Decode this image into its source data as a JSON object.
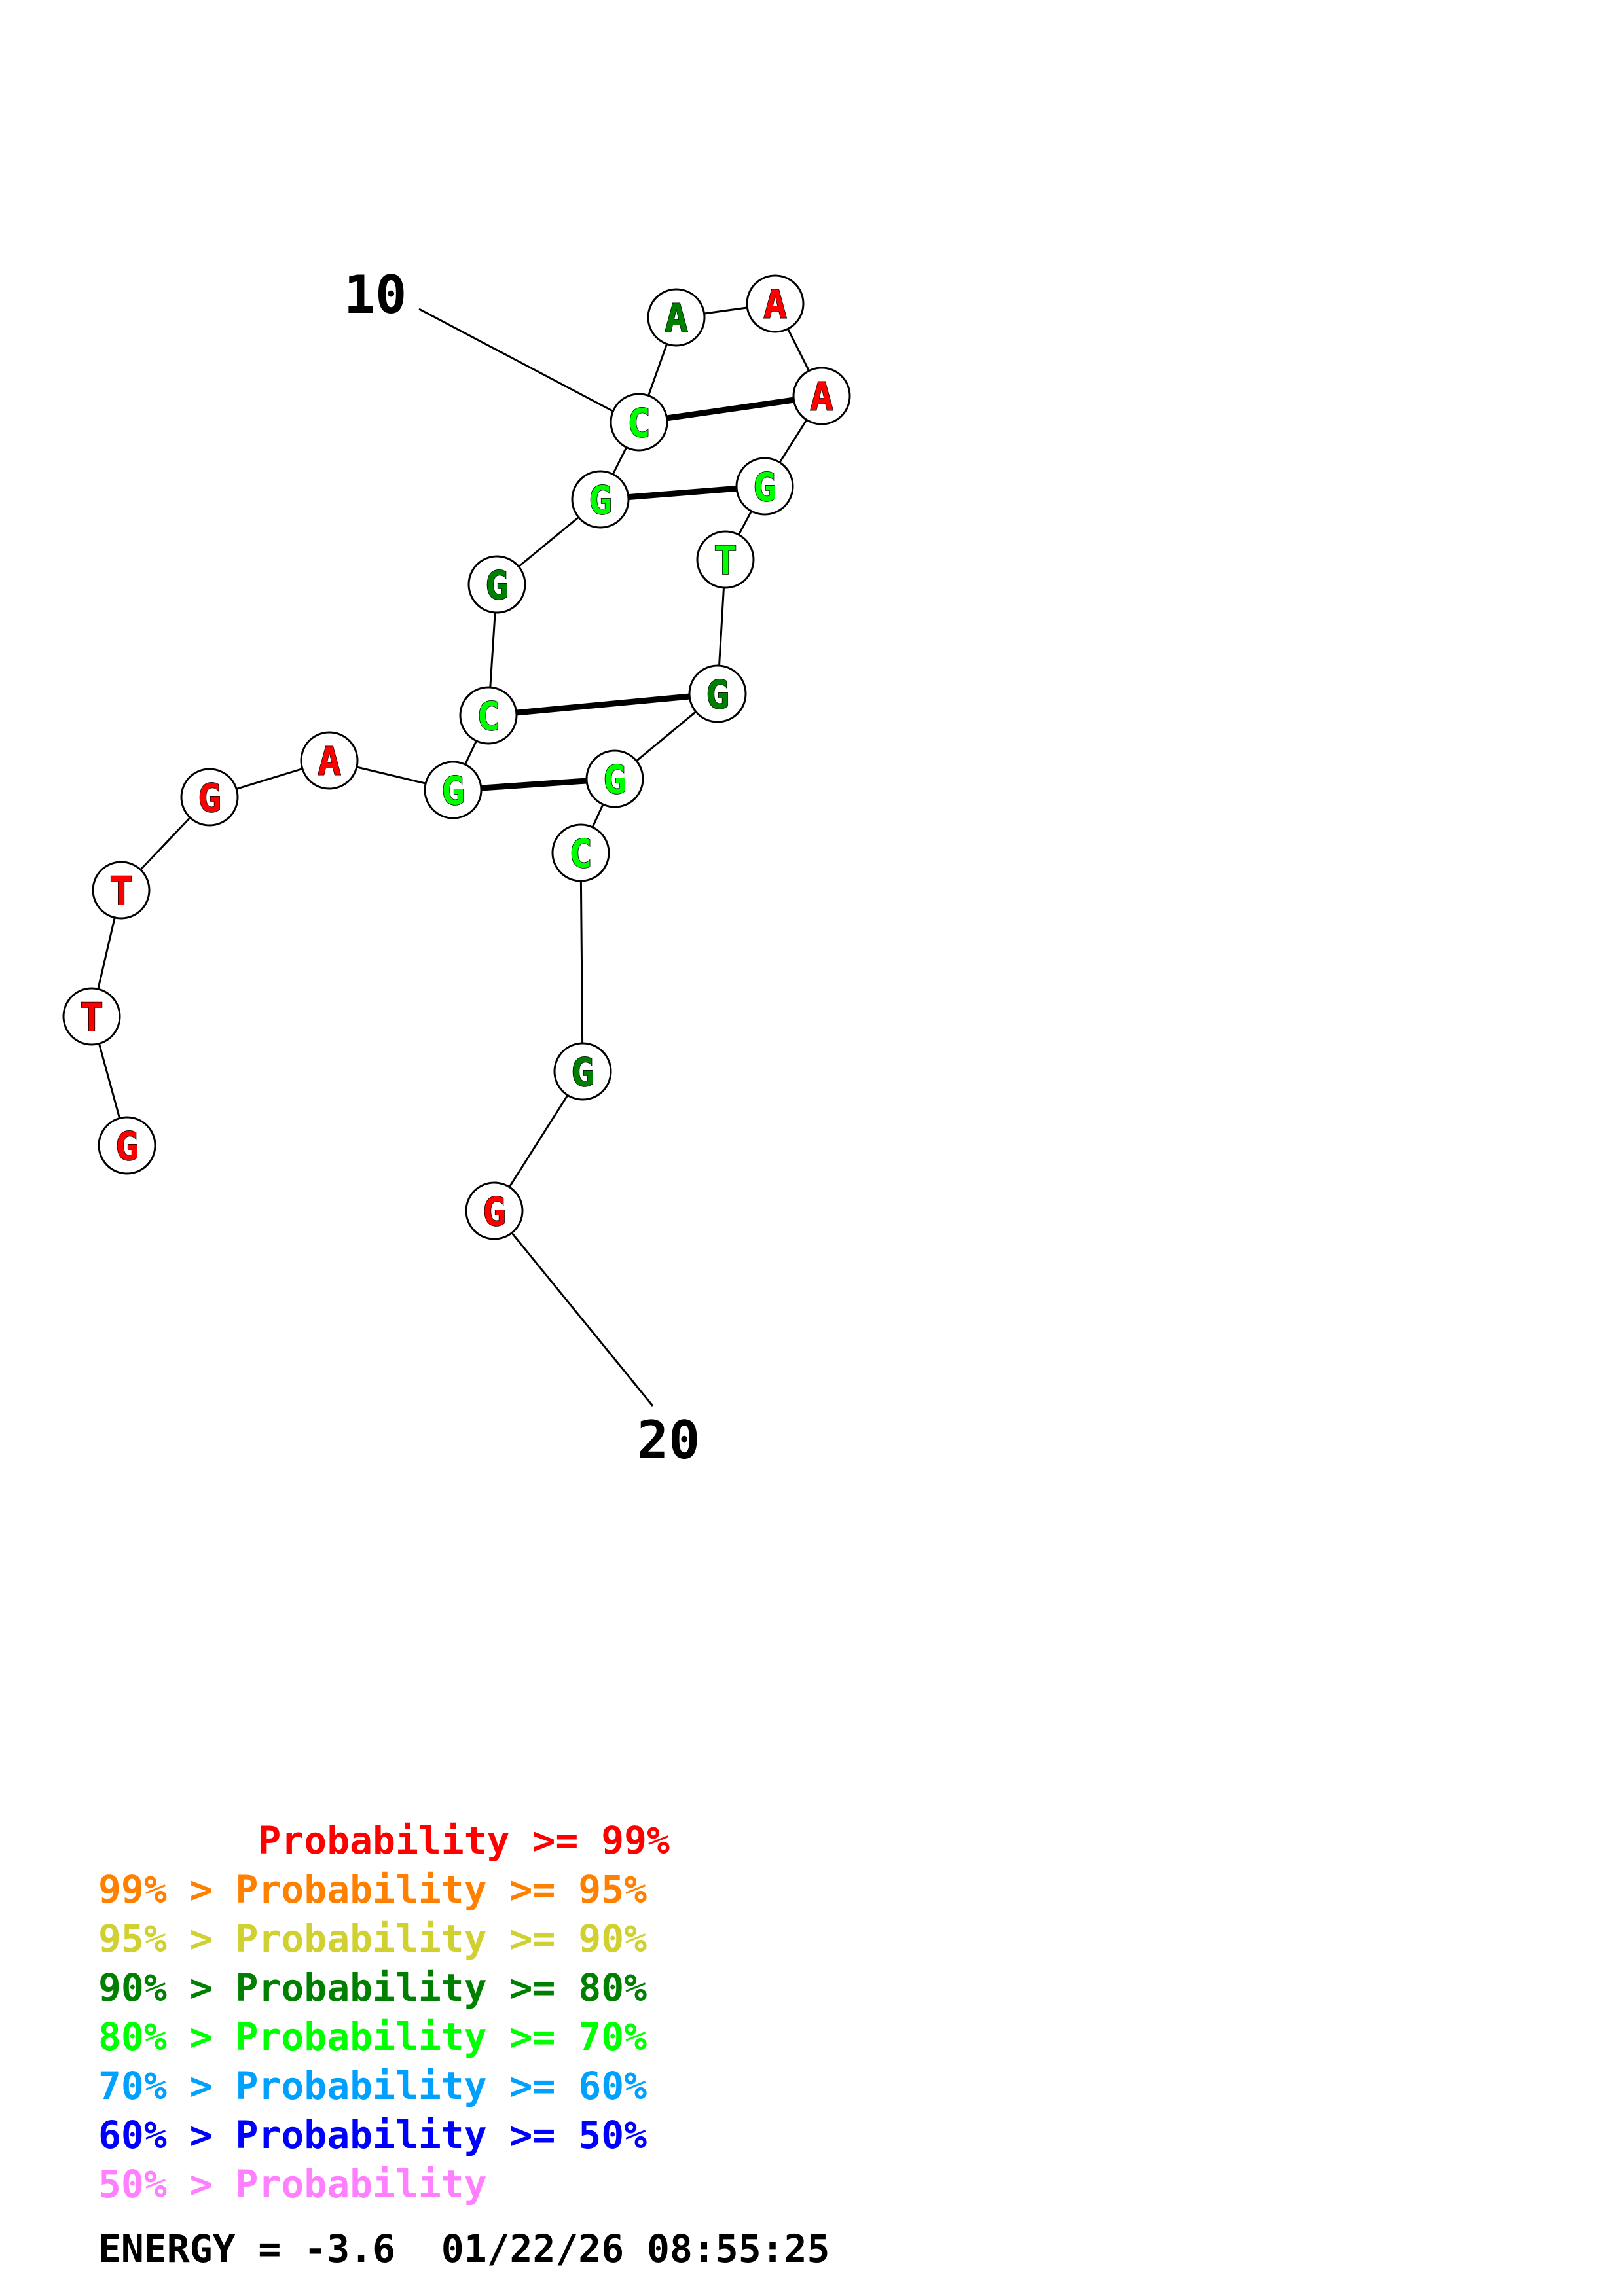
{
  "labels": {
    "start": "10",
    "end": "20"
  },
  "nucleotides": [
    {
      "base": "G",
      "color": "#ff0000"
    },
    {
      "base": "T",
      "color": "#ff0000"
    },
    {
      "base": "T",
      "color": "#ff0000"
    },
    {
      "base": "G",
      "color": "#ff0000"
    },
    {
      "base": "A",
      "color": "#ff0000"
    },
    {
      "base": "G",
      "color": "#00ff00"
    },
    {
      "base": "C",
      "color": "#00ff00"
    },
    {
      "base": "G",
      "color": "#008000"
    },
    {
      "base": "G",
      "color": "#00ff00"
    },
    {
      "base": "C",
      "color": "#00ff00"
    },
    {
      "base": "A",
      "color": "#008000"
    },
    {
      "base": "A",
      "color": "#ff0000"
    },
    {
      "base": "A",
      "color": "#ff0000"
    },
    {
      "base": "G",
      "color": "#00ff00"
    },
    {
      "base": "T",
      "color": "#00ff00"
    },
    {
      "base": "G",
      "color": "#008000"
    },
    {
      "base": "G",
      "color": "#00ff00"
    },
    {
      "base": "C",
      "color": "#00ff00"
    },
    {
      "base": "G",
      "color": "#008000"
    },
    {
      "base": "G",
      "color": "#ff0000"
    }
  ],
  "base_pairs": [
    [
      6,
      17
    ],
    [
      7,
      16
    ],
    [
      9,
      14
    ],
    [
      10,
      13
    ]
  ],
  "legend": [
    {
      "text": "       Probability >= 99%",
      "color": "#ff0000"
    },
    {
      "text": "99% > Probability >= 95%",
      "color": "#ff8000"
    },
    {
      "text": "95% > Probability >= 90%",
      "color": "#d0d030"
    },
    {
      "text": "90% > Probability >= 80%",
      "color": "#008000"
    },
    {
      "text": "80% > Probability >= 70%",
      "color": "#00ff00"
    },
    {
      "text": "70% > Probability >= 60%",
      "color": "#00a0ff"
    },
    {
      "text": "60% > Probability >= 50%",
      "color": "#0000ff"
    },
    {
      "text": "50% > Probability",
      "color": "#ff80ff"
    }
  ],
  "footer": "ENERGY = -3.6  01/22/26 08:55:25"
}
